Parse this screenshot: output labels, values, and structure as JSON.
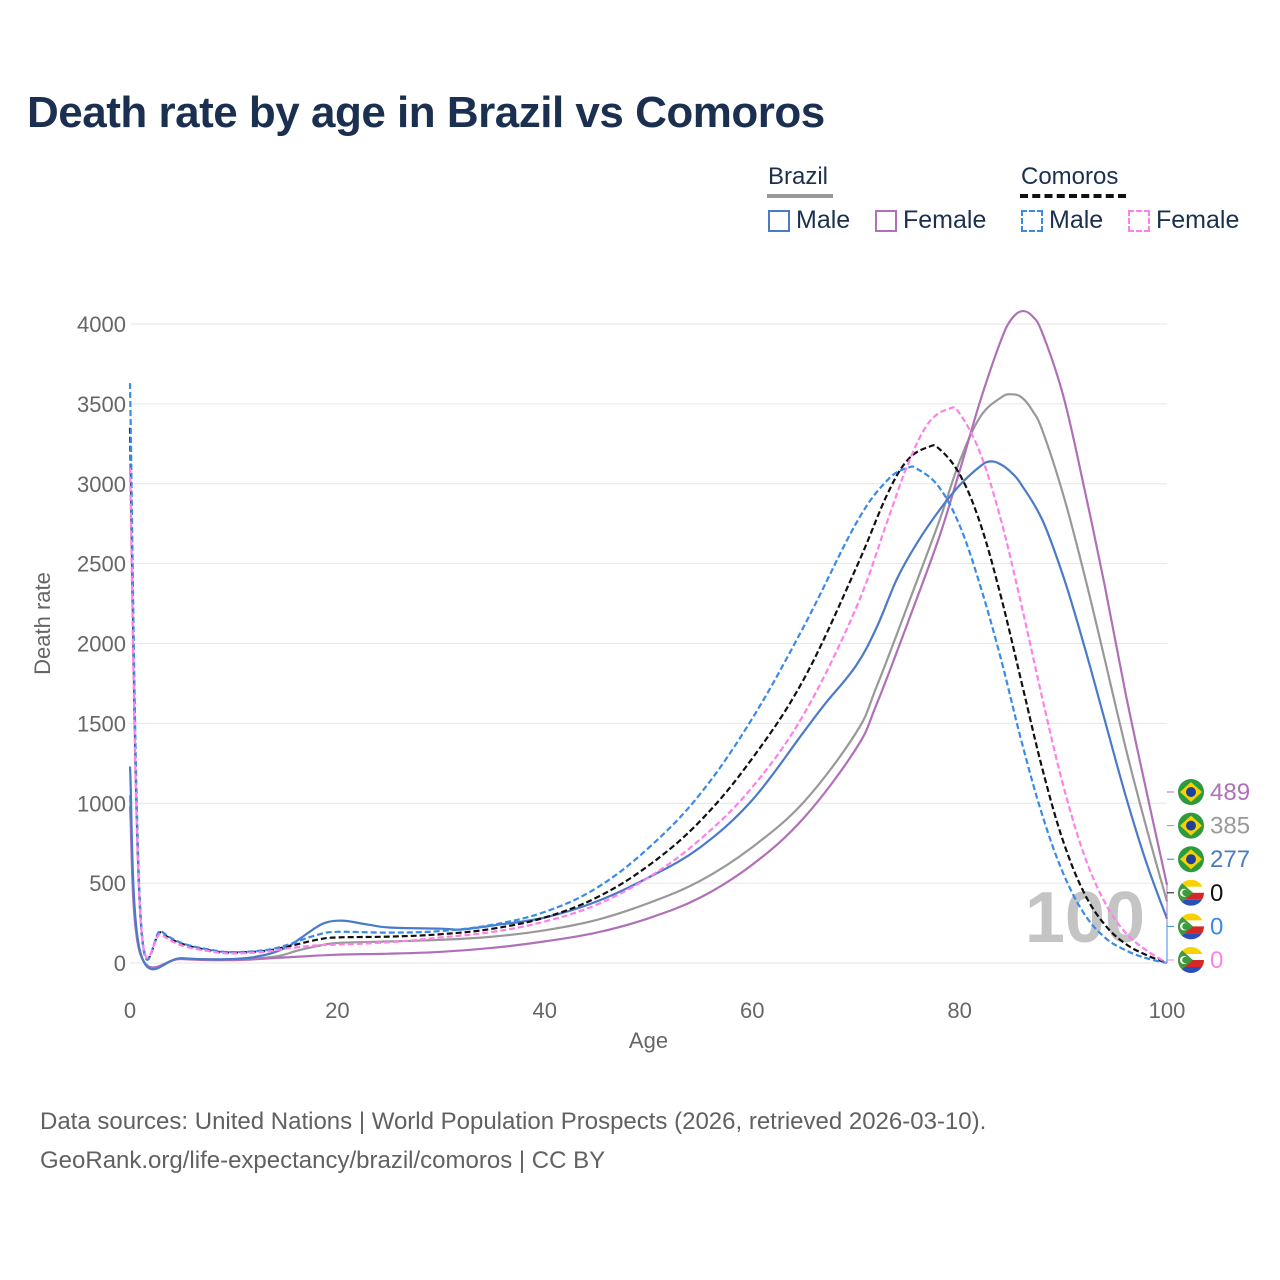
{
  "title": "Death rate by age in Brazil vs Comoros",
  "legend": {
    "groups": [
      {
        "name": "Brazil",
        "underline_style": "solid",
        "underline_color": "#999999",
        "items": [
          {
            "label": "Male",
            "color": "#4a7ac8",
            "style": "solid"
          },
          {
            "label": "Female",
            "color": "#b070b8",
            "style": "solid"
          }
        ]
      },
      {
        "name": "Comoros",
        "underline_style": "dashed",
        "underline_color": "#111111",
        "items": [
          {
            "label": "Male",
            "color": "#3a8ae8",
            "style": "dashed"
          },
          {
            "label": "Female",
            "color": "#ff80e8",
            "style": "dashed"
          }
        ]
      }
    ]
  },
  "year_watermark": "100",
  "footer": {
    "line1": "Data sources: United Nations | World Population Prospects (2026, retrieved 2026-03-10).",
    "line2": "GeoRank.org/life-expectancy/brazil/comoros | CC BY"
  },
  "end_labels": [
    {
      "value": "489",
      "country": "Brazil",
      "color": "#b070b8",
      "flag_icon": "brazil-flag-icon"
    },
    {
      "value": "385",
      "country": "Brazil",
      "color": "#999999",
      "flag_icon": "brazil-flag-icon"
    },
    {
      "value": "277",
      "country": "Brazil",
      "color": "#4a7ac8",
      "flag_icon": "brazil-flag-icon"
    },
    {
      "value": "0",
      "country": "Comoros",
      "color": "#111111",
      "flag_icon": "comoros-flag-icon"
    },
    {
      "value": "0",
      "country": "Comoros",
      "color": "#3a8ae8",
      "flag_icon": "comoros-flag-icon"
    },
    {
      "value": "0",
      "country": "Comoros",
      "color": "#ff80e8",
      "flag_icon": "comoros-flag-icon"
    }
  ],
  "chart_data": {
    "type": "line",
    "title": "Death rate by age in Brazil vs Comoros",
    "xlabel": "Age",
    "ylabel": "Death rate",
    "xlim": [
      0,
      100
    ],
    "ylim": [
      0,
      4000
    ],
    "xticks": [
      0,
      20,
      40,
      60,
      80,
      100
    ],
    "yticks": [
      0,
      500,
      1000,
      1500,
      2000,
      2500,
      3000,
      3500,
      4000
    ],
    "grid": true,
    "series": [
      {
        "name": "Brazil Total",
        "color": "#999999",
        "style": "solid",
        "points": [
          [
            0,
            1050
          ],
          [
            1,
            60
          ],
          [
            5,
            28
          ],
          [
            10,
            22
          ],
          [
            14,
            40
          ],
          [
            16,
            75
          ],
          [
            18,
            105
          ],
          [
            20,
            125
          ],
          [
            25,
            135
          ],
          [
            30,
            145
          ],
          [
            35,
            165
          ],
          [
            40,
            205
          ],
          [
            45,
            270
          ],
          [
            50,
            375
          ],
          [
            55,
            515
          ],
          [
            60,
            725
          ],
          [
            65,
            1010
          ],
          [
            70,
            1440
          ],
          [
            72,
            1730
          ],
          [
            75,
            2240
          ],
          [
            78,
            2760
          ],
          [
            80,
            3140
          ],
          [
            82,
            3420
          ],
          [
            84,
            3540
          ],
          [
            85,
            3560
          ],
          [
            86,
            3540
          ],
          [
            87,
            3460
          ],
          [
            88,
            3330
          ],
          [
            90,
            2930
          ],
          [
            92,
            2440
          ],
          [
            94,
            1900
          ],
          [
            96,
            1350
          ],
          [
            98,
            850
          ],
          [
            100,
            385
          ]
        ]
      },
      {
        "name": "Brazil Female",
        "color": "#b070b8",
        "style": "solid",
        "points": [
          [
            0,
            980
          ],
          [
            1,
            55
          ],
          [
            5,
            25
          ],
          [
            10,
            18
          ],
          [
            15,
            35
          ],
          [
            20,
            52
          ],
          [
            25,
            58
          ],
          [
            30,
            70
          ],
          [
            35,
            95
          ],
          [
            40,
            135
          ],
          [
            45,
            190
          ],
          [
            50,
            280
          ],
          [
            55,
            410
          ],
          [
            60,
            615
          ],
          [
            65,
            910
          ],
          [
            70,
            1340
          ],
          [
            72,
            1620
          ],
          [
            75,
            2130
          ],
          [
            78,
            2660
          ],
          [
            80,
            3080
          ],
          [
            82,
            3520
          ],
          [
            84,
            3900
          ],
          [
            85,
            4030
          ],
          [
            86,
            4080
          ],
          [
            87,
            4050
          ],
          [
            88,
            3940
          ],
          [
            90,
            3550
          ],
          [
            92,
            2980
          ],
          [
            94,
            2360
          ],
          [
            96,
            1690
          ],
          [
            98,
            1080
          ],
          [
            100,
            489
          ]
        ]
      },
      {
        "name": "Brazil Male",
        "color": "#4a7ac8",
        "style": "solid",
        "points": [
          [
            0,
            1230
          ],
          [
            1,
            65
          ],
          [
            5,
            30
          ],
          [
            10,
            25
          ],
          [
            13,
            50
          ],
          [
            15,
            95
          ],
          [
            16,
            135
          ],
          [
            18,
            225
          ],
          [
            19,
            255
          ],
          [
            20,
            265
          ],
          [
            21,
            262
          ],
          [
            23,
            240
          ],
          [
            25,
            222
          ],
          [
            30,
            215
          ],
          [
            32,
            210
          ],
          [
            35,
            235
          ],
          [
            40,
            285
          ],
          [
            45,
            385
          ],
          [
            50,
            535
          ],
          [
            55,
            725
          ],
          [
            60,
            1020
          ],
          [
            65,
            1450
          ],
          [
            67,
            1620
          ],
          [
            70,
            1860
          ],
          [
            72,
            2100
          ],
          [
            74,
            2410
          ],
          [
            76,
            2640
          ],
          [
            78,
            2830
          ],
          [
            80,
            2990
          ],
          [
            82,
            3110
          ],
          [
            83,
            3140
          ],
          [
            84,
            3120
          ],
          [
            85,
            3070
          ],
          [
            86,
            2990
          ],
          [
            88,
            2770
          ],
          [
            90,
            2420
          ],
          [
            92,
            1990
          ],
          [
            94,
            1520
          ],
          [
            96,
            1050
          ],
          [
            98,
            630
          ],
          [
            100,
            277
          ]
        ]
      },
      {
        "name": "Comoros Total",
        "color": "#111111",
        "style": "dashed",
        "points": [
          [
            0,
            3350
          ],
          [
            1,
            300
          ],
          [
            3,
            190
          ],
          [
            5,
            120
          ],
          [
            8,
            75
          ],
          [
            10,
            65
          ],
          [
            13,
            75
          ],
          [
            15,
            100
          ],
          [
            18,
            145
          ],
          [
            20,
            160
          ],
          [
            25,
            165
          ],
          [
            30,
            180
          ],
          [
            35,
            215
          ],
          [
            40,
            285
          ],
          [
            45,
            410
          ],
          [
            50,
            610
          ],
          [
            55,
            890
          ],
          [
            60,
            1280
          ],
          [
            65,
            1780
          ],
          [
            70,
            2470
          ],
          [
            73,
            2930
          ],
          [
            75,
            3150
          ],
          [
            77,
            3230
          ],
          [
            78,
            3220
          ],
          [
            80,
            3060
          ],
          [
            82,
            2750
          ],
          [
            84,
            2290
          ],
          [
            86,
            1750
          ],
          [
            88,
            1210
          ],
          [
            90,
            760
          ],
          [
            92,
            440
          ],
          [
            94,
            240
          ],
          [
            96,
            120
          ],
          [
            98,
            50
          ],
          [
            100,
            0
          ]
        ]
      },
      {
        "name": "Comoros Male",
        "color": "#3a8ae8",
        "style": "dashed",
        "points": [
          [
            0,
            3630
          ],
          [
            1,
            320
          ],
          [
            3,
            200
          ],
          [
            5,
            125
          ],
          [
            8,
            80
          ],
          [
            10,
            68
          ],
          [
            13,
            80
          ],
          [
            15,
            110
          ],
          [
            18,
            175
          ],
          [
            20,
            195
          ],
          [
            25,
            190
          ],
          [
            30,
            200
          ],
          [
            35,
            240
          ],
          [
            40,
            320
          ],
          [
            45,
            470
          ],
          [
            50,
            720
          ],
          [
            55,
            1060
          ],
          [
            60,
            1530
          ],
          [
            65,
            2110
          ],
          [
            70,
            2750
          ],
          [
            73,
            3020
          ],
          [
            75,
            3100
          ],
          [
            76,
            3090
          ],
          [
            78,
            2980
          ],
          [
            80,
            2740
          ],
          [
            82,
            2360
          ],
          [
            84,
            1900
          ],
          [
            86,
            1380
          ],
          [
            88,
            920
          ],
          [
            90,
            560
          ],
          [
            92,
            310
          ],
          [
            94,
            160
          ],
          [
            96,
            80
          ],
          [
            98,
            30
          ],
          [
            100,
            0
          ]
        ]
      },
      {
        "name": "Comoros Female",
        "color": "#ff80e8",
        "style": "dashed",
        "points": [
          [
            0,
            3100
          ],
          [
            1,
            290
          ],
          [
            3,
            180
          ],
          [
            5,
            110
          ],
          [
            8,
            70
          ],
          [
            10,
            60
          ],
          [
            13,
            70
          ],
          [
            15,
            90
          ],
          [
            18,
            110
          ],
          [
            20,
            115
          ],
          [
            25,
            130
          ],
          [
            30,
            160
          ],
          [
            35,
            195
          ],
          [
            40,
            260
          ],
          [
            45,
            365
          ],
          [
            50,
            535
          ],
          [
            55,
            775
          ],
          [
            60,
            1100
          ],
          [
            65,
            1560
          ],
          [
            70,
            2220
          ],
          [
            73,
            2760
          ],
          [
            75,
            3120
          ],
          [
            77,
            3380
          ],
          [
            79,
            3470
          ],
          [
            80,
            3440
          ],
          [
            82,
            3190
          ],
          [
            84,
            2770
          ],
          [
            86,
            2230
          ],
          [
            88,
            1650
          ],
          [
            90,
            1110
          ],
          [
            92,
            680
          ],
          [
            94,
            380
          ],
          [
            96,
            190
          ],
          [
            98,
            80
          ],
          [
            100,
            0
          ]
        ]
      }
    ]
  }
}
